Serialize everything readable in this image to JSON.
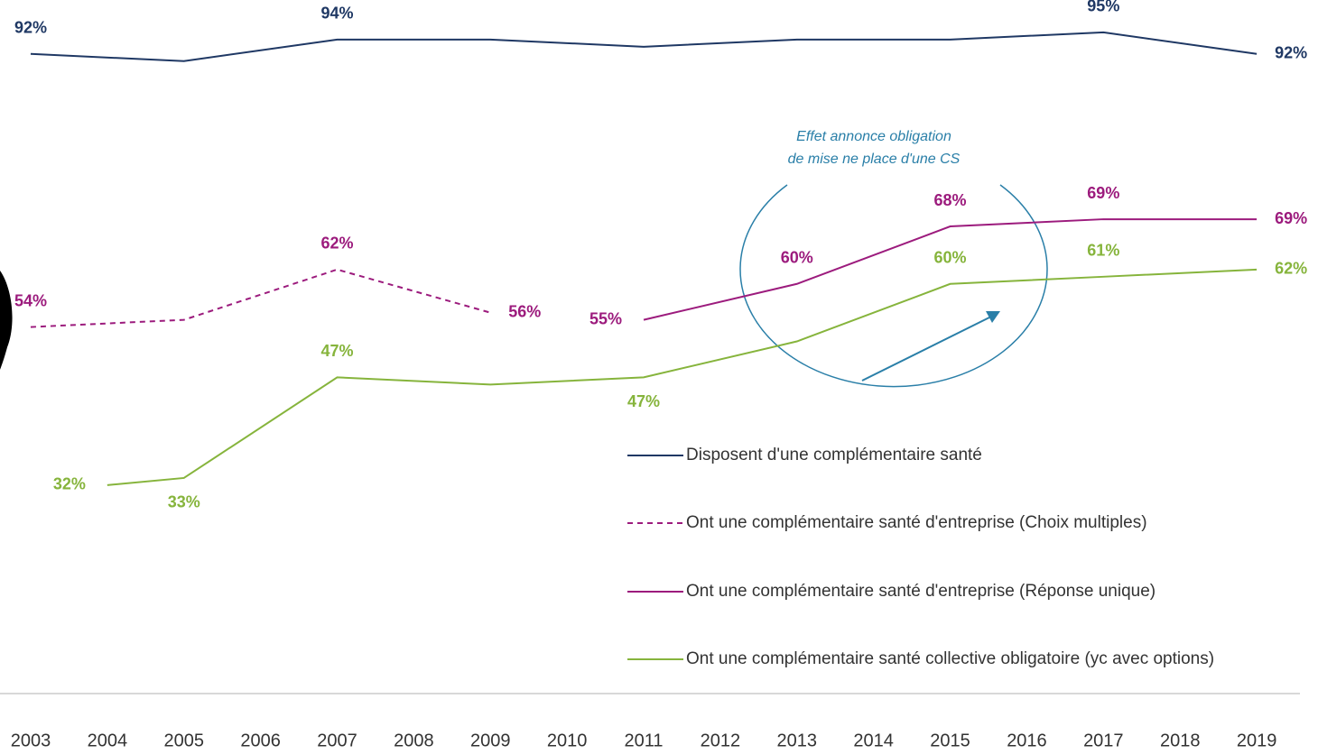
{
  "chart_data": {
    "type": "line",
    "xlim": [
      2002.6,
      2019.8
    ],
    "xticks": [
      2003,
      2004,
      2005,
      2006,
      2007,
      2008,
      2009,
      2010,
      2011,
      2012,
      2013,
      2014,
      2015,
      2016,
      2017,
      2018,
      2019
    ],
    "ylim": [
      3,
      99
    ],
    "annotation": [
      "Effet annonce obligation",
      "de mise ne place d'une CS"
    ],
    "series": [
      {
        "name": "Disposent d'une complémentaire santé",
        "color": "#1f3864",
        "dashed": false,
        "x": [
          2003,
          2005,
          2007,
          2009,
          2011,
          2013,
          2015,
          2017,
          2019
        ],
        "values": [
          92,
          91,
          94,
          94,
          93,
          94,
          94,
          95,
          92
        ],
        "value_labels": [
          "92%",
          null,
          "94%",
          null,
          null,
          null,
          null,
          "95%",
          "92%"
        ]
      },
      {
        "name": "Ont une complémentaire santé d'entreprise (Choix multiples)",
        "color": "#9c1b7d",
        "dashed": true,
        "x": [
          2003,
          2005,
          2007,
          2009
        ],
        "values": [
          54,
          55,
          62,
          56
        ],
        "value_labels": [
          "54%",
          null,
          "62%",
          "56%"
        ]
      },
      {
        "name": "Ont une complémentaire santé d'entreprise (Réponse unique)",
        "color": "#9c1b7d",
        "dashed": false,
        "x": [
          2011,
          2013,
          2015,
          2017,
          2019
        ],
        "values": [
          55,
          60,
          68,
          69,
          69
        ],
        "value_labels": [
          "55%",
          "60%",
          "68%",
          "69%",
          "69%"
        ]
      },
      {
        "name": "Ont une complémentaire santé collective obligatoire (yc avec options)",
        "color": "#86b43c",
        "dashed": false,
        "x": [
          2004,
          2005,
          2007,
          2009,
          2011,
          2013,
          2015,
          2017,
          2019
        ],
        "values": [
          32,
          33,
          47,
          46,
          47,
          52,
          60,
          61,
          62
        ],
        "value_labels": [
          "32%",
          "33%",
          "47%",
          null,
          "47%",
          null,
          "60%",
          "61%",
          "62%"
        ]
      }
    ]
  }
}
